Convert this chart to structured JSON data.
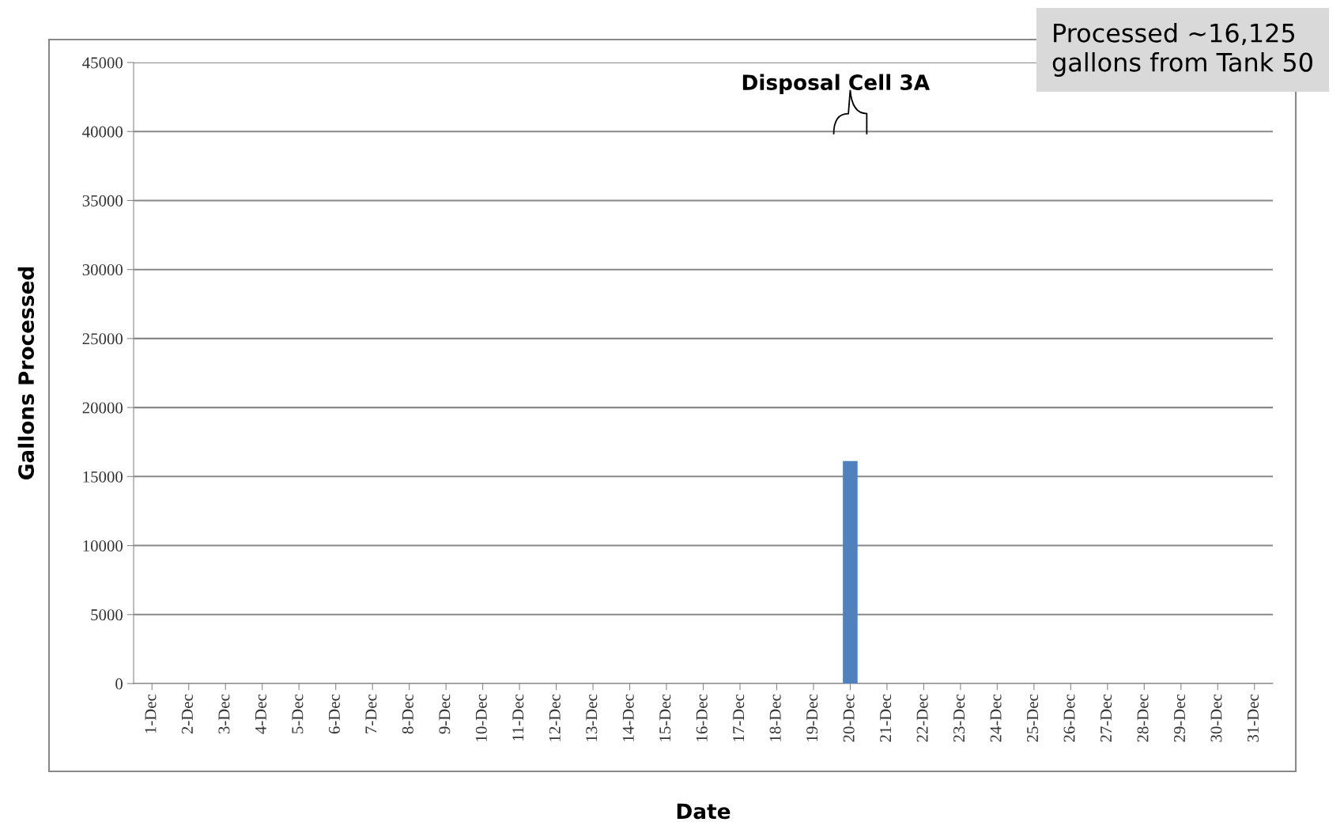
{
  "chart_data": {
    "type": "bar",
    "xlabel": "Date",
    "ylabel": "Gallons Processed",
    "categories": [
      "1-Dec",
      "2-Dec",
      "3-Dec",
      "4-Dec",
      "5-Dec",
      "6-Dec",
      "7-Dec",
      "8-Dec",
      "9-Dec",
      "10-Dec",
      "11-Dec",
      "12-Dec",
      "13-Dec",
      "14-Dec",
      "15-Dec",
      "16-Dec",
      "17-Dec",
      "18-Dec",
      "19-Dec",
      "20-Dec",
      "21-Dec",
      "22-Dec",
      "23-Dec",
      "24-Dec",
      "25-Dec",
      "26-Dec",
      "27-Dec",
      "28-Dec",
      "29-Dec",
      "30-Dec",
      "31-Dec"
    ],
    "values": [
      0,
      0,
      0,
      0,
      0,
      0,
      0,
      0,
      0,
      0,
      0,
      0,
      0,
      0,
      0,
      0,
      0,
      0,
      0,
      16125,
      0,
      0,
      0,
      0,
      0,
      0,
      0,
      0,
      0,
      0,
      0
    ],
    "color": "#4f81bd",
    "ylim": [
      0,
      45000
    ],
    "yticks": [
      0,
      5000,
      10000,
      15000,
      20000,
      25000,
      30000,
      35000,
      40000,
      45000
    ],
    "grid": "y",
    "legend": false,
    "annotations": [
      "Disposal Cell 3A",
      "Processed ~16,125 gallons from Tank 50"
    ]
  }
}
